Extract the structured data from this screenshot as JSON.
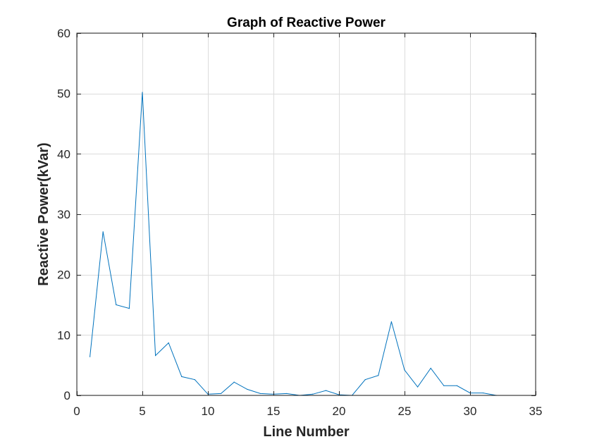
{
  "chart_data": {
    "type": "line",
    "title": "Graph of Reactive Power",
    "xlabel": "Line Number",
    "ylabel": "Reactive Power(kVar)",
    "xlim": [
      0,
      35
    ],
    "ylim": [
      0,
      60
    ],
    "xticks": [
      "0",
      "5",
      "10",
      "15",
      "20",
      "25",
      "30",
      "35"
    ],
    "yticks": [
      "0",
      "10",
      "20",
      "30",
      "40",
      "50",
      "60"
    ],
    "grid": true,
    "series": [
      {
        "color": "#0072bd",
        "x": [
          1,
          2,
          3,
          4,
          5,
          6,
          7,
          8,
          9,
          10,
          11,
          12,
          13,
          14,
          15,
          16,
          17,
          18,
          19,
          20,
          21,
          22,
          23,
          24,
          25,
          26,
          27,
          28,
          29,
          30,
          31,
          32
        ],
        "y": [
          6.4,
          27.1,
          15.0,
          14.4,
          50.2,
          6.6,
          8.7,
          3.1,
          2.6,
          0.2,
          0.3,
          2.2,
          1.0,
          0.3,
          0.2,
          0.3,
          0.0,
          0.2,
          0.8,
          0.1,
          0.0,
          2.6,
          3.3,
          12.2,
          4.2,
          1.4,
          4.5,
          1.6,
          1.6,
          0.4,
          0.4,
          0.0
        ]
      }
    ]
  }
}
